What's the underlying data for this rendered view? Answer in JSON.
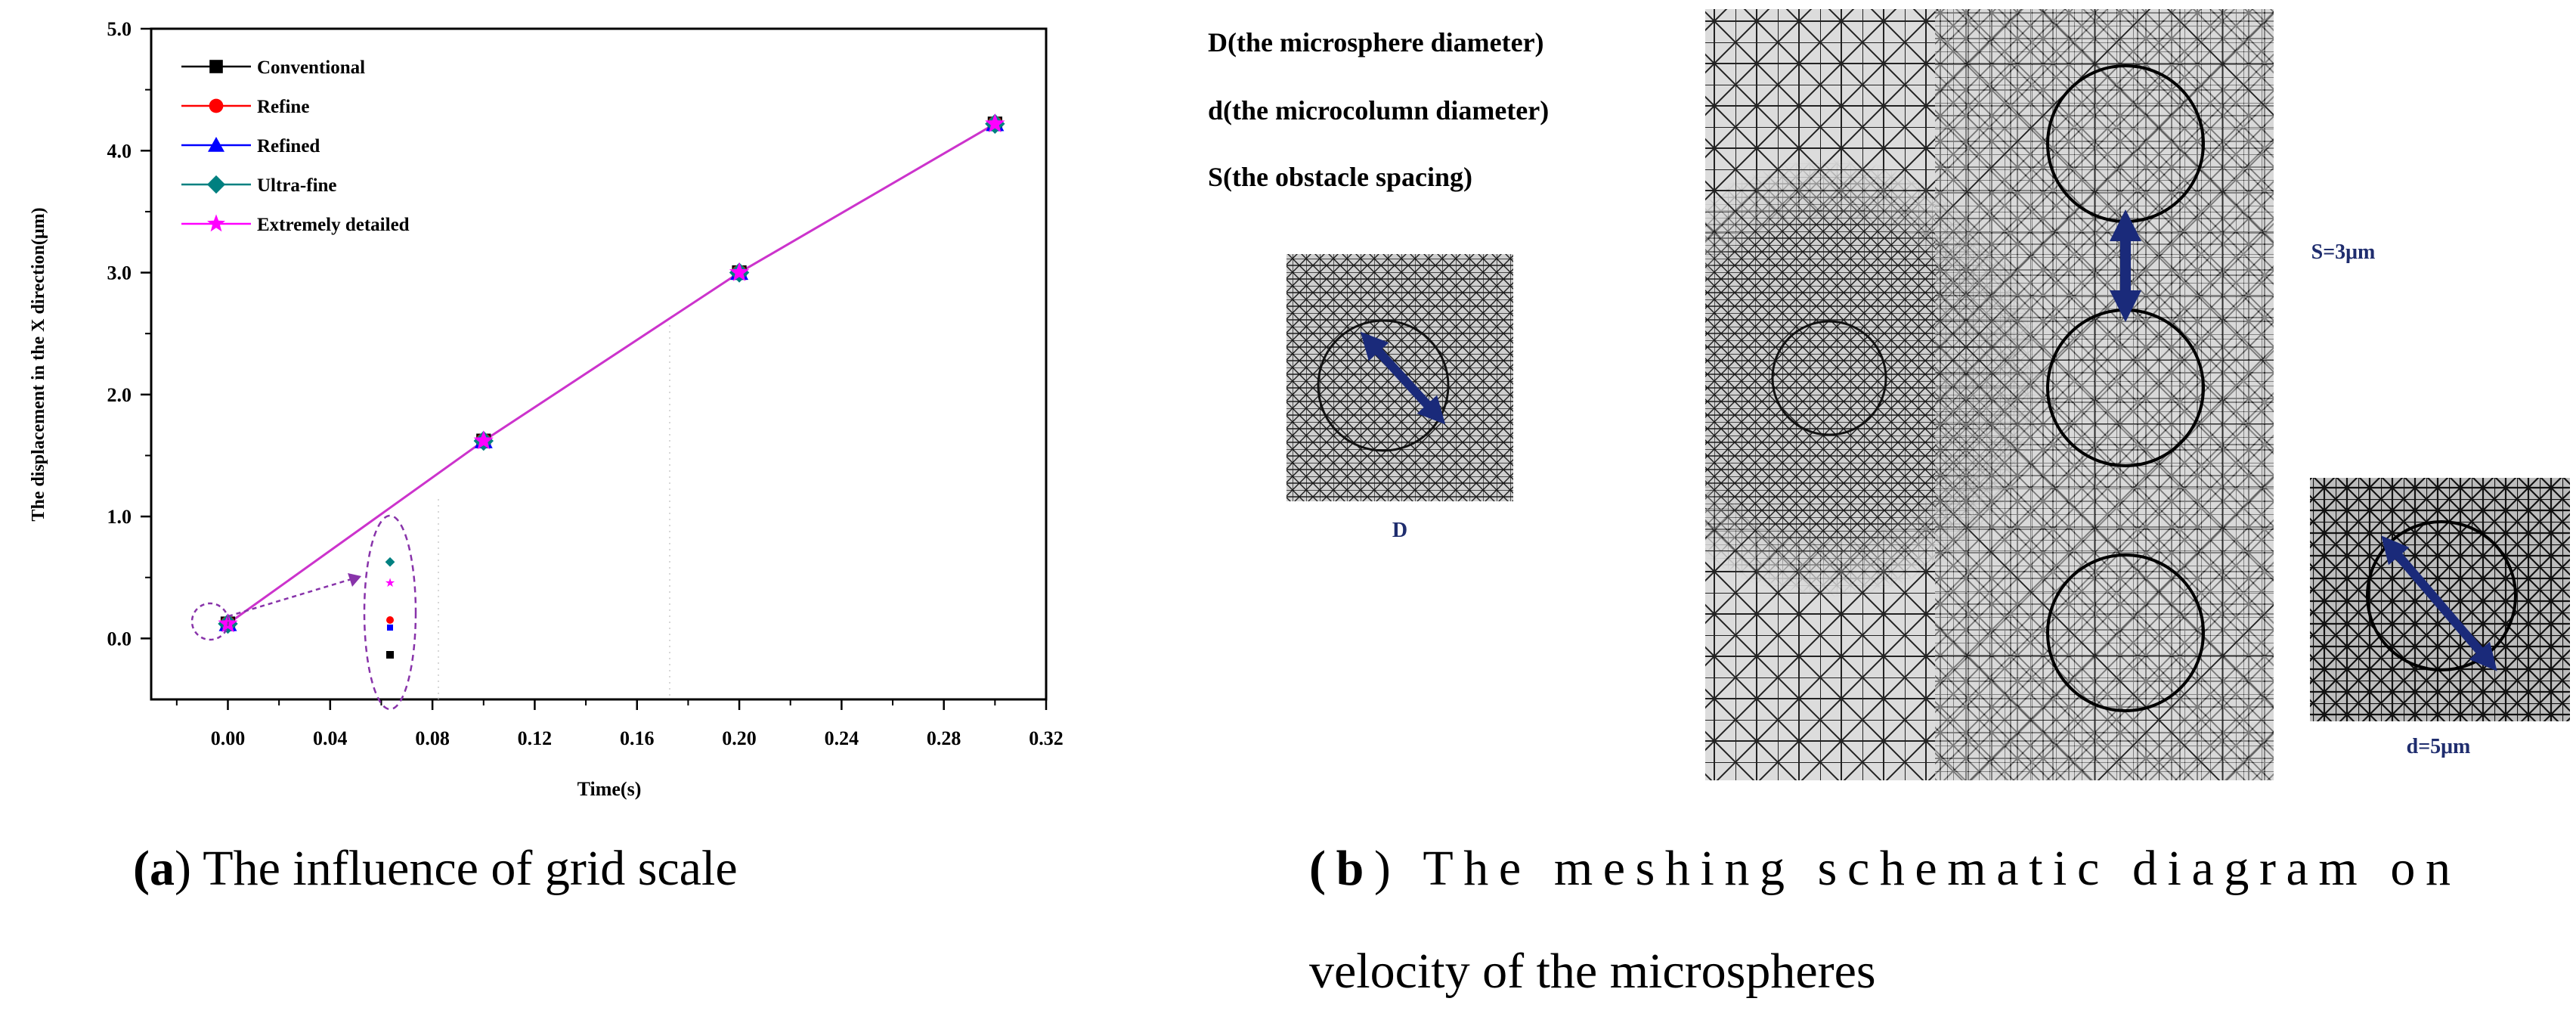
{
  "chart_data": {
    "type": "line",
    "xlabel": "Time(s)",
    "ylabel": "The displacement in the X direction(μm)",
    "xlim": [
      -0.03,
      0.32
    ],
    "ylim": [
      -0.5,
      5.0
    ],
    "xticks": [
      "0.00",
      "0.04",
      "0.08",
      "0.12",
      "0.16",
      "0.20",
      "0.24",
      "0.28",
      "0.32"
    ],
    "xtick_values": [
      0.0,
      0.04,
      0.08,
      0.12,
      0.16,
      0.2,
      0.24,
      0.28,
      0.32
    ],
    "yticks": [
      "0.0",
      "1.0",
      "2.0",
      "3.0",
      "4.0",
      "5.0"
    ],
    "ytick_values": [
      0,
      1,
      2,
      3,
      4,
      5
    ],
    "x": [
      0.0,
      0.1,
      0.2,
      0.3
    ],
    "series": [
      {
        "name": "Conventional",
        "values": [
          0.12,
          1.62,
          3.0,
          4.22
        ],
        "color": "#000000",
        "marker": "square"
      },
      {
        "name": "Refine",
        "values": [
          0.12,
          1.62,
          3.0,
          4.22
        ],
        "color": "#ff0000",
        "marker": "circle"
      },
      {
        "name": "Refined",
        "values": [
          0.12,
          1.62,
          3.0,
          4.22
        ],
        "color": "#0000ff",
        "marker": "triangle"
      },
      {
        "name": "Ultra-fine",
        "values": [
          0.12,
          1.62,
          3.0,
          4.22
        ],
        "color": "#008080",
        "marker": "diamond"
      },
      {
        "name": "Extremely detailed",
        "values": [
          0.12,
          1.62,
          3.0,
          4.22
        ],
        "color": "#ff00ff",
        "marker": "star"
      }
    ],
    "legend_position": "top-left",
    "annotation": "zoomed inset of markers at t = 0.00"
  },
  "panel_a": {
    "letter": "(a",
    "caption": ") The influence of grid scale"
  },
  "panel_b": {
    "letter": "(b",
    "caption_line1": ") The meshing schematic diagram on",
    "caption_line2": "velocity of the microspheres",
    "legend_lines": [
      "D(the microsphere diameter)",
      "d(the microcolumn diameter)",
      "S(the obstacle spacing)"
    ],
    "label_D": "D",
    "label_S": "S=3μm",
    "label_d": "d=5μm"
  },
  "colors": {
    "arrow": "#1a2a7a",
    "label": "#1f2d6e",
    "mesh_bg": "#d9d9d9",
    "mesh_line": "#1a1a1a",
    "line": "#cc33cc"
  }
}
